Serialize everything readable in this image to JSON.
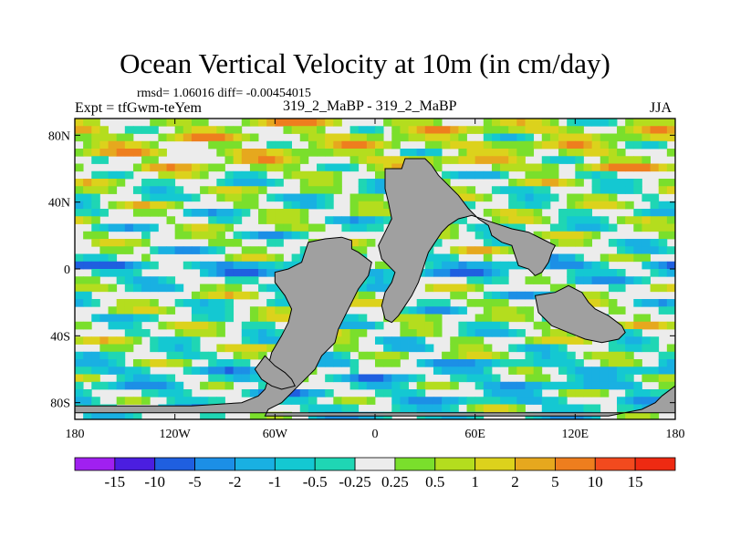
{
  "title": "Ocean Vertical Velocity at 10m (in cm/day)",
  "stats": "rmsd= 1.06016 diff= -0.00454015",
  "expt": "Expt = tfGwm-teYem",
  "runs": "319_2_MaBP - 319_2_MaBP",
  "season": "JJA",
  "chart_data": {
    "type": "contour-map",
    "title": "Ocean Vertical Velocity at 10m (in cm/day)",
    "units": "cm/day",
    "x_axis": {
      "range": [
        -180,
        180
      ],
      "ticks": [
        {
          "value": -180,
          "label": "180"
        },
        {
          "value": -120,
          "label": "120W"
        },
        {
          "value": -60,
          "label": "60W"
        },
        {
          "value": 0,
          "label": "0"
        },
        {
          "value": 60,
          "label": "60E"
        },
        {
          "value": 120,
          "label": "120E"
        },
        {
          "value": 180,
          "label": "180"
        }
      ]
    },
    "y_axis": {
      "range": [
        -90,
        90
      ],
      "ticks": [
        {
          "value": 80,
          "label": "80N"
        },
        {
          "value": 40,
          "label": "40N"
        },
        {
          "value": 0,
          "label": "0"
        },
        {
          "value": -40,
          "label": "40S"
        },
        {
          "value": -80,
          "label": "80S"
        }
      ]
    },
    "land_color": "#a0a0a0",
    "colorbar": {
      "levels": [
        "-15",
        "-10",
        "-5",
        "-2",
        "-1",
        "-0.5",
        "-0.25",
        "0.25",
        "0.5",
        "1",
        "2",
        "5",
        "10",
        "15"
      ],
      "colors": [
        "#a020f0",
        "#4b1ee0",
        "#1f5fe0",
        "#1c8fe6",
        "#19b0e2",
        "#14c8d2",
        "#1fd6b4",
        "#ececec",
        "#7adf2c",
        "#b4dd1e",
        "#dcd21c",
        "#e6a81e",
        "#ee7e1e",
        "#f24a1e",
        "#ee2a12"
      ]
    }
  }
}
